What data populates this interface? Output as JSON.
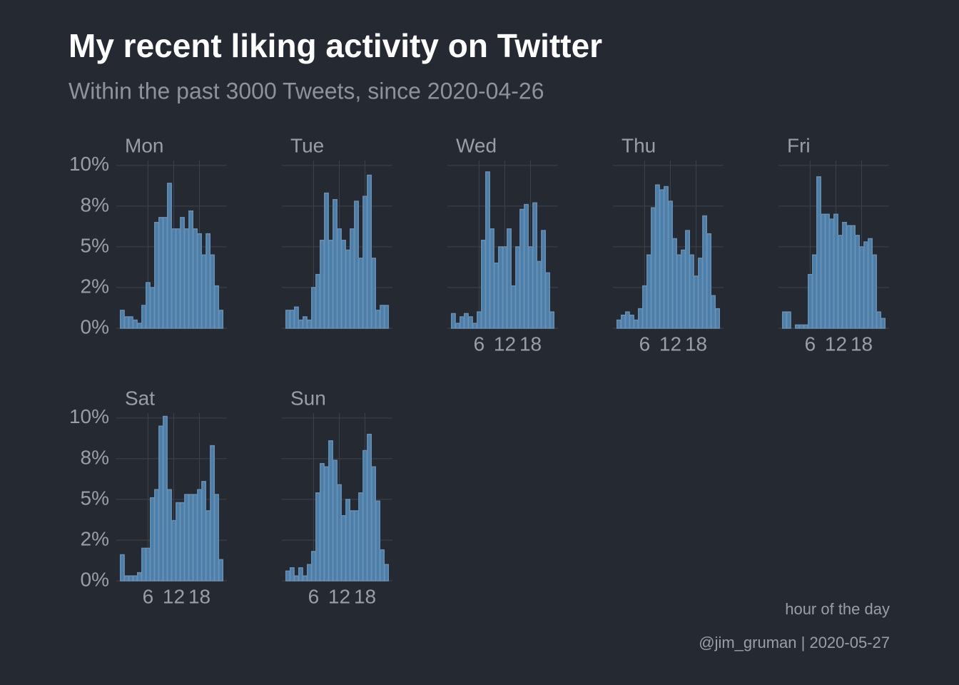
{
  "header": {
    "title": "My recent liking activity on Twitter",
    "subtitle": "Within the past 3000 Tweets, since 2020-04-26"
  },
  "footer": {
    "x_label": "hour of the day",
    "caption": "@jim_gruman | 2020-05-27"
  },
  "chart_data": [
    {
      "type": "bar",
      "title": "Mon",
      "color": "#4a7eab",
      "edge_color": "#6b8fb0",
      "grid": true,
      "show_x_labels": false,
      "show_y_labels": true,
      "x": [
        0,
        1,
        2,
        3,
        4,
        5,
        6,
        7,
        8,
        9,
        10,
        11,
        12,
        13,
        14,
        15,
        16,
        17,
        18,
        19,
        20,
        21,
        22,
        23
      ],
      "values": [
        1.1,
        0.7,
        0.7,
        0.5,
        0.3,
        1.4,
        2.8,
        2.5,
        6.5,
        6.8,
        6.8,
        8.9,
        6.1,
        6.1,
        6.8,
        6.1,
        7.2,
        6.1,
        5.8,
        4.5,
        5.8,
        4.5,
        2.6,
        1.1
      ],
      "xlim": [
        -1.4,
        24.4
      ],
      "xticks": [
        6,
        12,
        18
      ],
      "ylim": [
        0,
        10.3
      ],
      "yticks": [
        {
          "value": 0,
          "label": "0%"
        },
        {
          "value": 2.5,
          "label": "2%"
        },
        {
          "value": 5,
          "label": "5%"
        },
        {
          "value": 7.5,
          "label": "8%"
        },
        {
          "value": 10,
          "label": "10%"
        }
      ]
    },
    {
      "type": "bar",
      "title": "Tue",
      "color": "#4a7eab",
      "edge_color": "#6b8fb0",
      "grid": true,
      "show_x_labels": false,
      "show_y_labels": false,
      "x": [
        0,
        1,
        2,
        3,
        4,
        5,
        6,
        7,
        8,
        9,
        10,
        11,
        12,
        13,
        14,
        15,
        16,
        17,
        18,
        19,
        20,
        21,
        22,
        23
      ],
      "values": [
        1.1,
        1.1,
        1.3,
        0.5,
        0.7,
        0.5,
        2.5,
        3.3,
        5.4,
        8.3,
        5.4,
        7.9,
        6.1,
        5.4,
        4.8,
        6.1,
        7.8,
        4.3,
        8.1,
        9.4,
        4.3,
        1.1,
        1.4,
        1.4
      ],
      "xlim": [
        -1.4,
        24.4
      ],
      "xticks": [
        6,
        12,
        18
      ],
      "ylim": [
        0,
        10.3
      ],
      "yticks": [
        {
          "value": 0,
          "label": "0%"
        },
        {
          "value": 2.5,
          "label": "2%"
        },
        {
          "value": 5,
          "label": "5%"
        },
        {
          "value": 7.5,
          "label": "8%"
        },
        {
          "value": 10,
          "label": "10%"
        }
      ]
    },
    {
      "type": "bar",
      "title": "Wed",
      "color": "#4a7eab",
      "edge_color": "#6b8fb0",
      "grid": true,
      "show_x_labels": true,
      "show_y_labels": false,
      "x": [
        0,
        1,
        2,
        3,
        4,
        5,
        6,
        7,
        8,
        9,
        10,
        11,
        12,
        13,
        14,
        15,
        16,
        17,
        18,
        19,
        20,
        21,
        22,
        23
      ],
      "values": [
        0.9,
        0.3,
        0.7,
        0.9,
        0.7,
        0.3,
        1.0,
        5.4,
        9.6,
        6.1,
        4.0,
        5.0,
        5.0,
        6.1,
        2.6,
        5.0,
        7.3,
        7.6,
        5.0,
        7.7,
        4.1,
        6.0,
        3.4,
        1.0
      ],
      "xlim": [
        -1.4,
        24.4
      ],
      "xticks": [
        6,
        12,
        18
      ],
      "ylim": [
        0,
        10.3
      ],
      "yticks": [
        {
          "value": 0,
          "label": "0%"
        },
        {
          "value": 2.5,
          "label": "2%"
        },
        {
          "value": 5,
          "label": "5%"
        },
        {
          "value": 7.5,
          "label": "8%"
        },
        {
          "value": 10,
          "label": "10%"
        }
      ]
    },
    {
      "type": "bar",
      "title": "Thu",
      "color": "#4a7eab",
      "edge_color": "#6b8fb0",
      "grid": true,
      "show_x_labels": true,
      "show_y_labels": false,
      "x": [
        0,
        1,
        2,
        3,
        4,
        5,
        6,
        7,
        8,
        9,
        10,
        11,
        12,
        13,
        14,
        15,
        16,
        17,
        18,
        19,
        20,
        21,
        22,
        23
      ],
      "values": [
        0.5,
        0.8,
        1.0,
        0.8,
        0.5,
        1.2,
        2.6,
        4.5,
        7.4,
        8.8,
        8.5,
        8.7,
        7.8,
        5.5,
        4.5,
        4.8,
        6.0,
        4.5,
        3.2,
        4.3,
        6.9,
        5.8,
        2.0,
        1.2
      ],
      "xlim": [
        -1.4,
        24.4
      ],
      "xticks": [
        6,
        12,
        18
      ],
      "ylim": [
        0,
        10.3
      ],
      "yticks": [
        {
          "value": 0,
          "label": "0%"
        },
        {
          "value": 2.5,
          "label": "2%"
        },
        {
          "value": 5,
          "label": "5%"
        },
        {
          "value": 7.5,
          "label": "8%"
        },
        {
          "value": 10,
          "label": "10%"
        }
      ]
    },
    {
      "type": "bar",
      "title": "Fri",
      "color": "#4a7eab",
      "edge_color": "#6b8fb0",
      "grid": true,
      "show_x_labels": true,
      "show_y_labels": false,
      "x": [
        0,
        1,
        2,
        3,
        4,
        5,
        6,
        7,
        8,
        9,
        10,
        11,
        12,
        13,
        14,
        15,
        16,
        17,
        18,
        19,
        20,
        21,
        22,
        23
      ],
      "values": [
        1.0,
        1.0,
        0.0,
        0.2,
        0.2,
        0.2,
        3.3,
        4.5,
        9.3,
        7.0,
        7.0,
        6.7,
        7.0,
        5.7,
        6.5,
        6.3,
        6.3,
        5.7,
        5.0,
        5.3,
        5.5,
        4.5,
        1.0,
        0.6
      ],
      "xlim": [
        -1.4,
        24.4
      ],
      "xticks": [
        6,
        12,
        18
      ],
      "ylim": [
        0,
        10.3
      ],
      "yticks": [
        {
          "value": 0,
          "label": "0%"
        },
        {
          "value": 2.5,
          "label": "2%"
        },
        {
          "value": 5,
          "label": "5%"
        },
        {
          "value": 7.5,
          "label": "8%"
        },
        {
          "value": 10,
          "label": "10%"
        }
      ]
    },
    {
      "type": "bar",
      "title": "Sat",
      "color": "#4a7eab",
      "edge_color": "#6b8fb0",
      "grid": true,
      "show_x_labels": true,
      "show_y_labels": true,
      "x": [
        0,
        1,
        2,
        3,
        4,
        5,
        6,
        7,
        8,
        9,
        10,
        11,
        12,
        13,
        14,
        15,
        16,
        17,
        18,
        19,
        20,
        21,
        22,
        23
      ],
      "values": [
        1.6,
        0.3,
        0.3,
        0.3,
        0.5,
        2.0,
        2.0,
        5.1,
        5.6,
        9.5,
        10.1,
        5.6,
        3.7,
        4.8,
        4.8,
        5.3,
        5.3,
        5.3,
        5.6,
        6.1,
        4.3,
        8.3,
        5.3,
        1.3
      ],
      "xlim": [
        -1.4,
        24.4
      ],
      "xticks": [
        6,
        12,
        18
      ],
      "ylim": [
        0,
        10.3
      ],
      "yticks": [
        {
          "value": 0,
          "label": "0%"
        },
        {
          "value": 2.5,
          "label": "2%"
        },
        {
          "value": 5,
          "label": "5%"
        },
        {
          "value": 7.5,
          "label": "8%"
        },
        {
          "value": 10,
          "label": "10%"
        }
      ]
    },
    {
      "type": "bar",
      "title": "Sun",
      "color": "#4a7eab",
      "edge_color": "#6b8fb0",
      "grid": true,
      "show_x_labels": true,
      "show_y_labels": false,
      "x": [
        0,
        1,
        2,
        3,
        4,
        5,
        6,
        7,
        8,
        9,
        10,
        11,
        12,
        13,
        14,
        15,
        16,
        17,
        18,
        19,
        20,
        21,
        22,
        23
      ],
      "values": [
        0.6,
        0.8,
        0.3,
        0.8,
        0.3,
        1.0,
        1.8,
        5.4,
        7.2,
        7.0,
        8.6,
        7.4,
        5.9,
        4.0,
        5.0,
        4.3,
        4.3,
        5.4,
        8.0,
        9.0,
        7.0,
        4.9,
        1.9,
        1.0
      ],
      "xlim": [
        -1.4,
        24.4
      ],
      "xticks": [
        6,
        12,
        18
      ],
      "ylim": [
        0,
        10.3
      ],
      "yticks": [
        {
          "value": 0,
          "label": "0%"
        },
        {
          "value": 2.5,
          "label": "2%"
        },
        {
          "value": 5,
          "label": "5%"
        },
        {
          "value": 7.5,
          "label": "8%"
        },
        {
          "value": 10,
          "label": "10%"
        }
      ]
    }
  ]
}
